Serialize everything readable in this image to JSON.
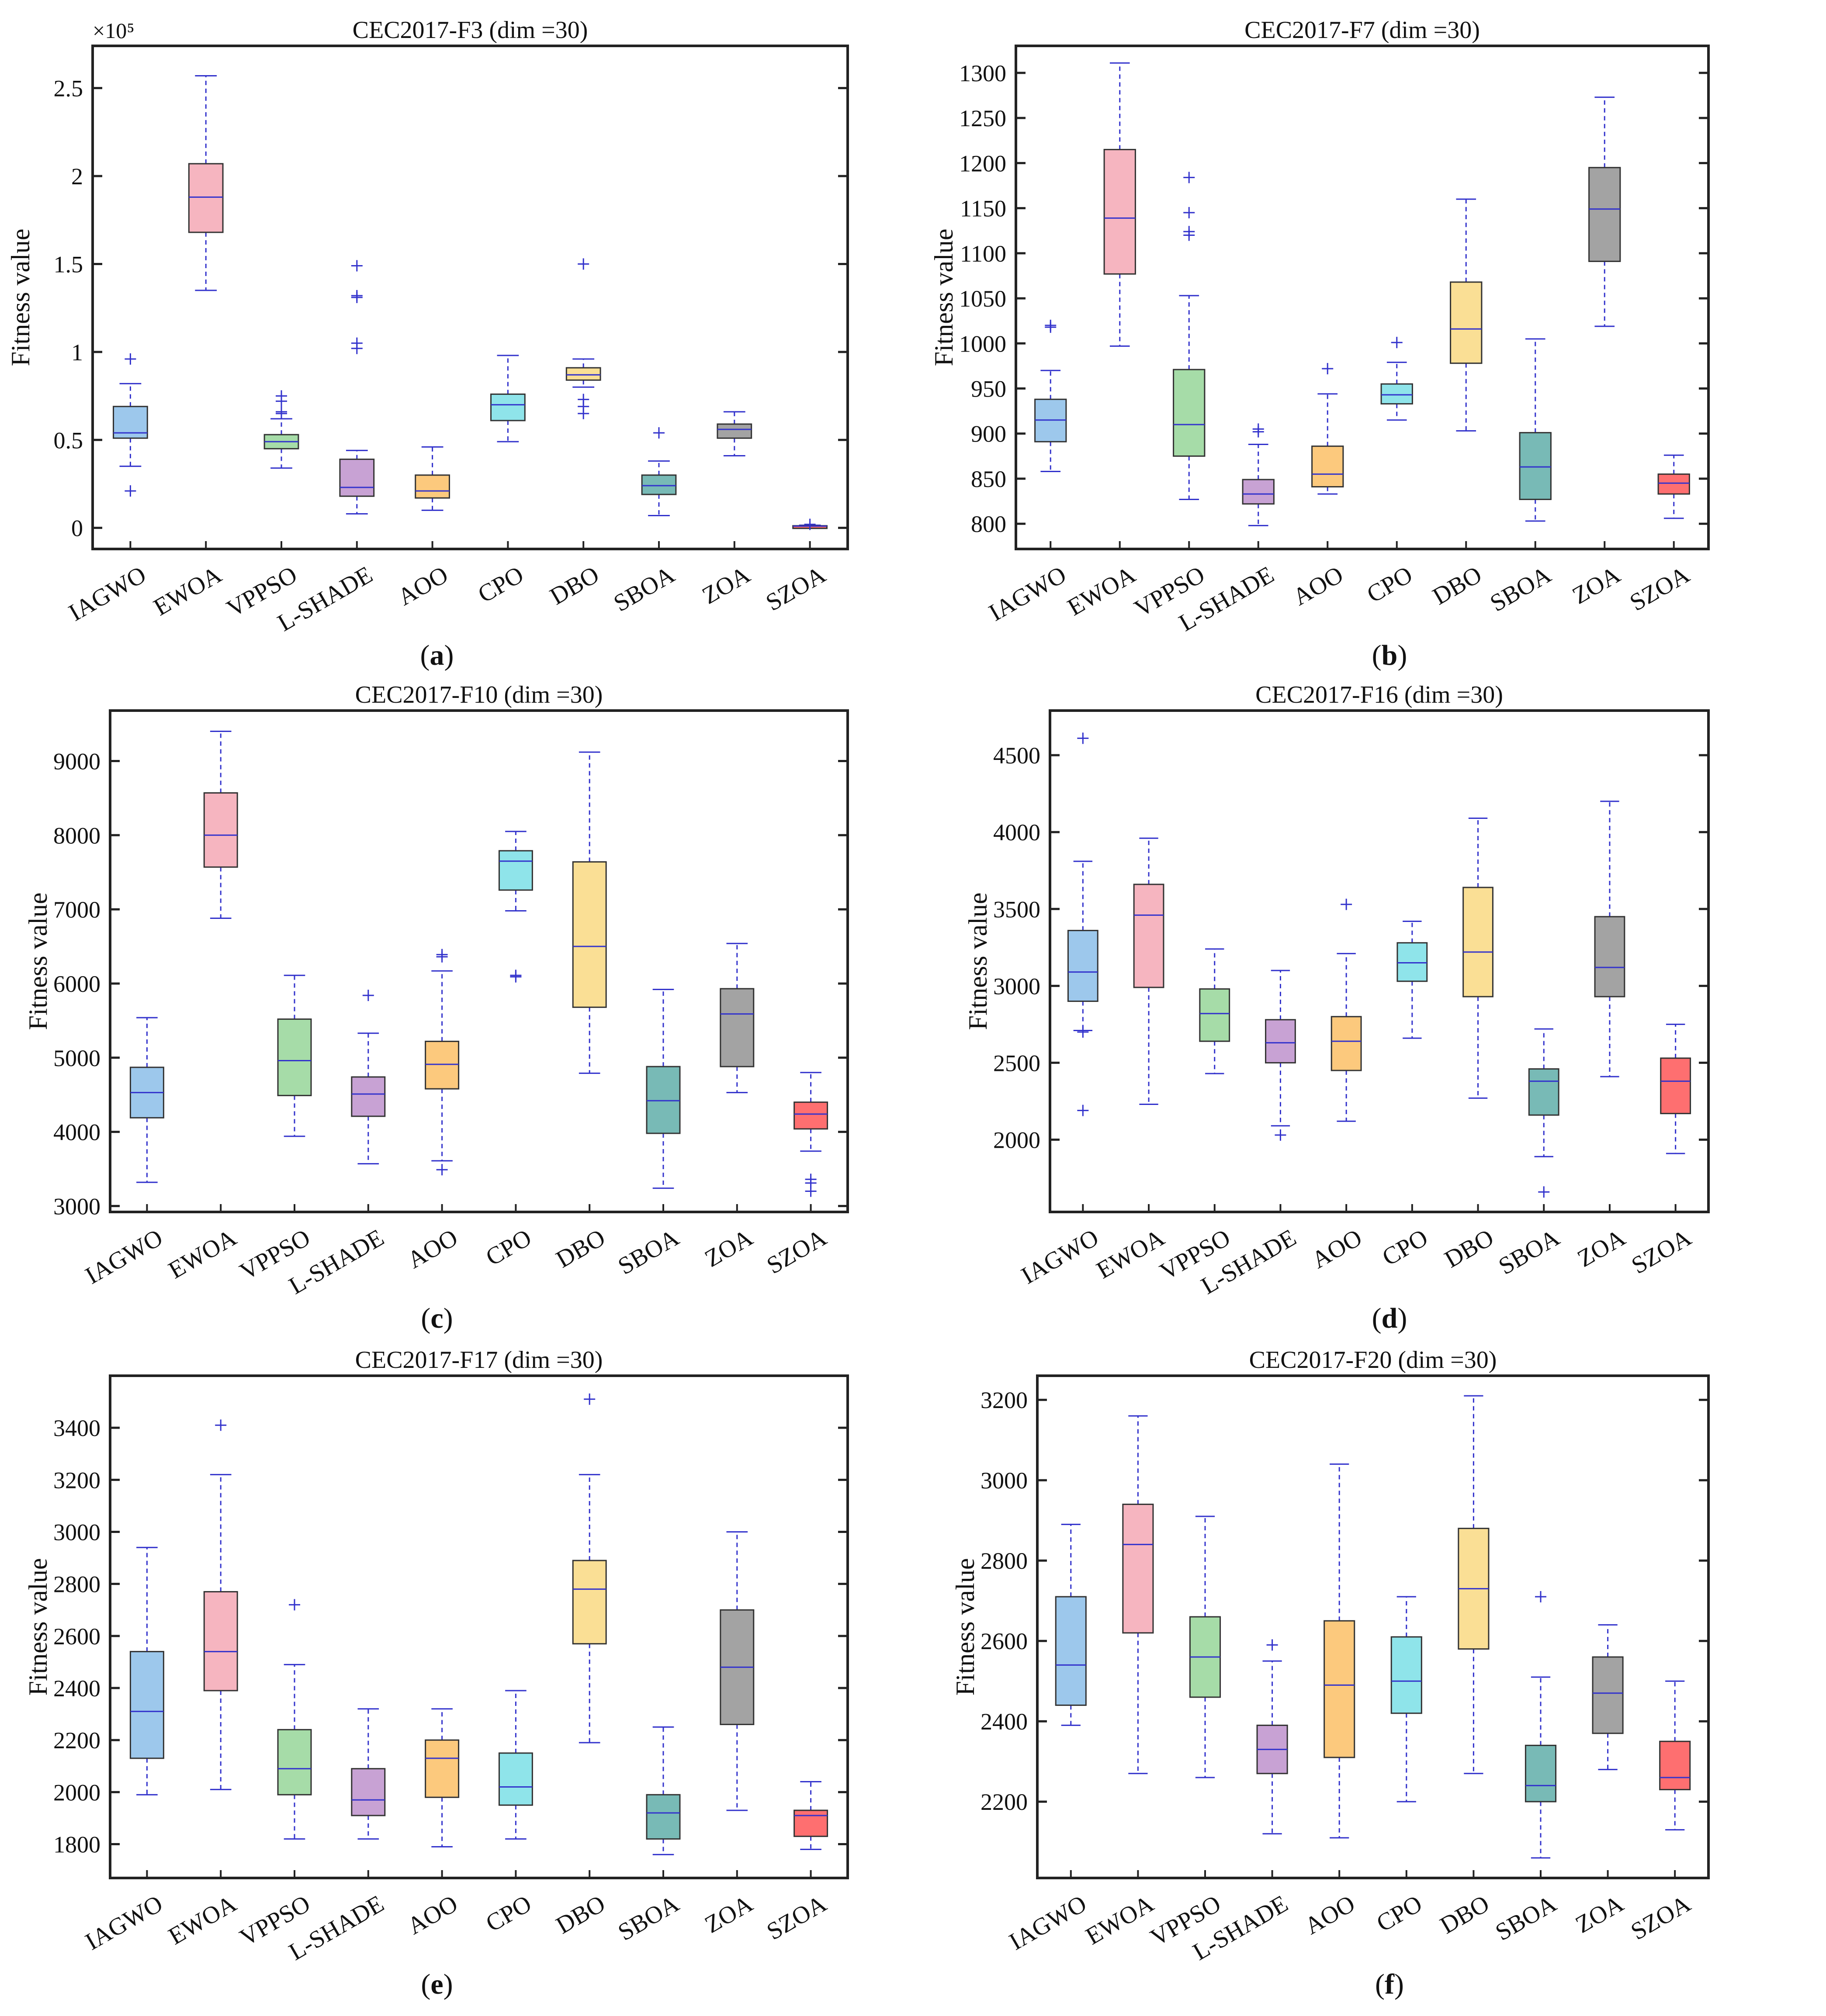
{
  "figure": {
    "categories": [
      "IAGWO",
      "EWOA",
      "VPPSO",
      "L-SHADE",
      "AOO",
      "CPO",
      "DBO",
      "SBOA",
      "ZOA",
      "SZOA"
    ],
    "colors": [
      "#9DC8EC",
      "#F6B5C0",
      "#A6DCA8",
      "#C8A2D4",
      "#FCC97D",
      "#8FE4EA",
      "#FADF95",
      "#78BAB6",
      "#A3A3A3",
      "#FE6F70"
    ],
    "whisker_color": "#3333CC",
    "ylabel": "Fitness value"
  },
  "chart_data": [
    {
      "type": "box",
      "title": "CEC2017-F3 (dim =30)",
      "panel_label": "a",
      "ylabel": "Fitness value",
      "scale_label": "×10⁵",
      "ylim": [
        -0.12,
        2.74
      ],
      "yticks": [
        0,
        0.5,
        1,
        1.5,
        2,
        2.5
      ],
      "ytick_labels": [
        "0",
        "0.5",
        "1",
        "1.5",
        "2",
        "2.5"
      ],
      "boxes": [
        {
          "name": "IAGWO",
          "whislo": 0.35,
          "q1": 0.51,
          "med": 0.54,
          "q3": 0.69,
          "whishi": 0.82,
          "fliers": [
            0.96,
            0.21
          ]
        },
        {
          "name": "EWOA",
          "whislo": 1.35,
          "q1": 1.68,
          "med": 1.88,
          "q3": 2.07,
          "whishi": 2.57,
          "fliers": []
        },
        {
          "name": "VPPSO",
          "whislo": 0.34,
          "q1": 0.45,
          "med": 0.49,
          "q3": 0.53,
          "whishi": 0.62,
          "fliers": [
            0.75,
            0.72,
            0.66,
            0.65
          ]
        },
        {
          "name": "L-SHADE",
          "whislo": 0.08,
          "q1": 0.18,
          "med": 0.23,
          "q3": 0.39,
          "whishi": 0.44,
          "fliers": [
            1.49,
            1.32,
            1.31,
            1.05,
            1.02
          ]
        },
        {
          "name": "AOO",
          "whislo": 0.1,
          "q1": 0.17,
          "med": 0.21,
          "q3": 0.3,
          "whishi": 0.46,
          "fliers": []
        },
        {
          "name": "CPO",
          "whislo": 0.49,
          "q1": 0.61,
          "med": 0.7,
          "q3": 0.76,
          "whishi": 0.98,
          "fliers": []
        },
        {
          "name": "DBO",
          "whislo": 0.8,
          "q1": 0.84,
          "med": 0.87,
          "q3": 0.91,
          "whishi": 0.96,
          "fliers": [
            1.5,
            0.73,
            0.69,
            0.65
          ]
        },
        {
          "name": "SBOA",
          "whislo": 0.07,
          "q1": 0.19,
          "med": 0.24,
          "q3": 0.3,
          "whishi": 0.38,
          "fliers": [
            0.54
          ]
        },
        {
          "name": "ZOA",
          "whislo": 0.41,
          "q1": 0.51,
          "med": 0.56,
          "q3": 0.59,
          "whishi": 0.66,
          "fliers": []
        },
        {
          "name": "SZOA",
          "whislo": 0.005,
          "q1": 0.007,
          "med": 0.01,
          "q3": 0.012,
          "whishi": 0.015,
          "fliers": [
            0.02
          ]
        }
      ]
    },
    {
      "type": "box",
      "title": "CEC2017-F7 (dim =30)",
      "panel_label": "b",
      "ylabel": "Fitness value",
      "ylim": [
        772,
        1330
      ],
      "yticks": [
        800,
        850,
        900,
        950,
        1000,
        1050,
        1100,
        1150,
        1200,
        1250,
        1300
      ],
      "ytick_labels": [
        "800",
        "850",
        "900",
        "950",
        "1000",
        "1050",
        "1100",
        "1150",
        "1200",
        "1250",
        "1300"
      ],
      "boxes": [
        {
          "name": "IAGWO",
          "whislo": 858,
          "q1": 891,
          "med": 915,
          "q3": 938,
          "whishi": 970,
          "fliers": [
            1020,
            1018
          ]
        },
        {
          "name": "EWOA",
          "whislo": 997,
          "q1": 1077,
          "med": 1139,
          "q3": 1215,
          "whishi": 1311,
          "fliers": []
        },
        {
          "name": "VPPSO",
          "whislo": 827,
          "q1": 875,
          "med": 910,
          "q3": 971,
          "whishi": 1053,
          "fliers": [
            1184,
            1145,
            1124,
            1120
          ]
        },
        {
          "name": "L-SHADE",
          "whislo": 798,
          "q1": 822,
          "med": 833,
          "q3": 849,
          "whishi": 888,
          "fliers": [
            905,
            902
          ]
        },
        {
          "name": "AOO",
          "whislo": 833,
          "q1": 841,
          "med": 855,
          "q3": 886,
          "whishi": 944,
          "fliers": [
            972
          ]
        },
        {
          "name": "CPO",
          "whislo": 915,
          "q1": 933,
          "med": 943,
          "q3": 955,
          "whishi": 979,
          "fliers": [
            1001
          ]
        },
        {
          "name": "DBO",
          "whislo": 903,
          "q1": 978,
          "med": 1016,
          "q3": 1068,
          "whishi": 1160,
          "fliers": []
        },
        {
          "name": "SBOA",
          "whislo": 803,
          "q1": 827,
          "med": 863,
          "q3": 901,
          "whishi": 1005,
          "fliers": []
        },
        {
          "name": "ZOA",
          "whislo": 1019,
          "q1": 1091,
          "med": 1149,
          "q3": 1195,
          "whishi": 1273,
          "fliers": []
        },
        {
          "name": "SZOA",
          "whislo": 806,
          "q1": 833,
          "med": 845,
          "q3": 855,
          "whishi": 876,
          "fliers": []
        }
      ]
    },
    {
      "type": "box",
      "title": "CEC2017-F10 (dim =30)",
      "panel_label": "c",
      "ylabel": "Fitness value",
      "ylim": [
        2920,
        9680
      ],
      "yticks": [
        3000,
        4000,
        5000,
        6000,
        7000,
        8000,
        9000
      ],
      "ytick_labels": [
        "3000",
        "4000",
        "5000",
        "6000",
        "7000",
        "8000",
        "9000"
      ],
      "boxes": [
        {
          "name": "IAGWO",
          "whislo": 3320,
          "q1": 4190,
          "med": 4530,
          "q3": 4870,
          "whishi": 5540,
          "fliers": []
        },
        {
          "name": "EWOA",
          "whislo": 6880,
          "q1": 7570,
          "med": 8000,
          "q3": 8570,
          "whishi": 9400,
          "fliers": []
        },
        {
          "name": "VPPSO",
          "whislo": 3940,
          "q1": 4490,
          "med": 4960,
          "q3": 5520,
          "whishi": 6110,
          "fliers": []
        },
        {
          "name": "L-SHADE",
          "whislo": 3570,
          "q1": 4210,
          "med": 4510,
          "q3": 4740,
          "whishi": 5330,
          "fliers": [
            5840
          ]
        },
        {
          "name": "AOO",
          "whislo": 3610,
          "q1": 4580,
          "med": 4910,
          "q3": 5220,
          "whishi": 6170,
          "fliers": [
            6390,
            6360,
            3490
          ]
        },
        {
          "name": "CPO",
          "whislo": 6980,
          "q1": 7260,
          "med": 7650,
          "q3": 7790,
          "whishi": 8050,
          "fliers": [
            6110,
            6090
          ]
        },
        {
          "name": "DBO",
          "whislo": 4790,
          "q1": 5680,
          "med": 6500,
          "q3": 7640,
          "whishi": 9120,
          "fliers": []
        },
        {
          "name": "SBOA",
          "whislo": 3240,
          "q1": 3980,
          "med": 4420,
          "q3": 4880,
          "whishi": 5920,
          "fliers": []
        },
        {
          "name": "ZOA",
          "whislo": 4530,
          "q1": 4880,
          "med": 5590,
          "q3": 5930,
          "whishi": 6540,
          "fliers": []
        },
        {
          "name": "SZOA",
          "whislo": 3740,
          "q1": 4040,
          "med": 4240,
          "q3": 4400,
          "whishi": 4800,
          "fliers": [
            3360,
            3310,
            3200
          ]
        }
      ]
    },
    {
      "type": "box",
      "title": "CEC2017-F16 (dim =30)",
      "panel_label": "d",
      "ylabel": "Fitness value",
      "ylim": [
        1530,
        4790
      ],
      "yticks": [
        2000,
        2500,
        3000,
        3500,
        4000,
        4500
      ],
      "ytick_labels": [
        "2000",
        "2500",
        "3000",
        "3500",
        "4000",
        "4500"
      ],
      "boxes": [
        {
          "name": "IAGWO",
          "whislo": 2710,
          "q1": 2900,
          "med": 3090,
          "q3": 3360,
          "whishi": 3810,
          "fliers": [
            4610,
            2700,
            2190
          ]
        },
        {
          "name": "EWOA",
          "whislo": 2230,
          "q1": 2990,
          "med": 3460,
          "q3": 3660,
          "whishi": 3960,
          "fliers": []
        },
        {
          "name": "VPPSO",
          "whislo": 2430,
          "q1": 2640,
          "med": 2820,
          "q3": 2980,
          "whishi": 3240,
          "fliers": []
        },
        {
          "name": "L-SHADE",
          "whislo": 2090,
          "q1": 2500,
          "med": 2630,
          "q3": 2780,
          "whishi": 3100,
          "fliers": [
            2030
          ]
        },
        {
          "name": "AOO",
          "whislo": 2120,
          "q1": 2450,
          "med": 2640,
          "q3": 2800,
          "whishi": 3210,
          "fliers": [
            3530
          ]
        },
        {
          "name": "CPO",
          "whislo": 2660,
          "q1": 3030,
          "med": 3150,
          "q3": 3280,
          "whishi": 3420,
          "fliers": []
        },
        {
          "name": "DBO",
          "whislo": 2270,
          "q1": 2930,
          "med": 3220,
          "q3": 3640,
          "whishi": 4090,
          "fliers": []
        },
        {
          "name": "SBOA",
          "whislo": 1890,
          "q1": 2160,
          "med": 2380,
          "q3": 2460,
          "whishi": 2720,
          "fliers": [
            1660
          ]
        },
        {
          "name": "ZOA",
          "whislo": 2410,
          "q1": 2930,
          "med": 3120,
          "q3": 3450,
          "whishi": 4200,
          "fliers": []
        },
        {
          "name": "SZOA",
          "whislo": 1910,
          "q1": 2170,
          "med": 2380,
          "q3": 2530,
          "whishi": 2750,
          "fliers": []
        }
      ]
    },
    {
      "type": "box",
      "title": "CEC2017-F17 (dim =30)",
      "panel_label": "e",
      "ylabel": "Fitness value",
      "ylim": [
        1670,
        3600
      ],
      "yticks": [
        1800,
        2000,
        2200,
        2400,
        2600,
        2800,
        3000,
        3200,
        3400
      ],
      "ytick_labels": [
        "1800",
        "2000",
        "2200",
        "2400",
        "2600",
        "2800",
        "3000",
        "3200",
        "3400"
      ],
      "boxes": [
        {
          "name": "IAGWO",
          "whislo": 1990,
          "q1": 2130,
          "med": 2310,
          "q3": 2540,
          "whishi": 2940,
          "fliers": []
        },
        {
          "name": "EWOA",
          "whislo": 2010,
          "q1": 2390,
          "med": 2540,
          "q3": 2770,
          "whishi": 3220,
          "fliers": [
            3410
          ]
        },
        {
          "name": "VPPSO",
          "whislo": 1820,
          "q1": 1990,
          "med": 2090,
          "q3": 2240,
          "whishi": 2490,
          "fliers": [
            2720
          ]
        },
        {
          "name": "L-SHADE",
          "whislo": 1820,
          "q1": 1910,
          "med": 1970,
          "q3": 2090,
          "whishi": 2320,
          "fliers": []
        },
        {
          "name": "AOO",
          "whislo": 1790,
          "q1": 1980,
          "med": 2130,
          "q3": 2200,
          "whishi": 2320,
          "fliers": []
        },
        {
          "name": "CPO",
          "whislo": 1820,
          "q1": 1950,
          "med": 2020,
          "q3": 2150,
          "whishi": 2390,
          "fliers": []
        },
        {
          "name": "DBO",
          "whislo": 2190,
          "q1": 2570,
          "med": 2780,
          "q3": 2890,
          "whishi": 3220,
          "fliers": [
            3510
          ]
        },
        {
          "name": "SBOA",
          "whislo": 1760,
          "q1": 1820,
          "med": 1920,
          "q3": 1990,
          "whishi": 2250,
          "fliers": []
        },
        {
          "name": "ZOA",
          "whislo": 1930,
          "q1": 2260,
          "med": 2480,
          "q3": 2700,
          "whishi": 3000,
          "fliers": []
        },
        {
          "name": "SZOA",
          "whislo": 1780,
          "q1": 1830,
          "med": 1910,
          "q3": 1930,
          "whishi": 2040,
          "fliers": []
        }
      ]
    },
    {
      "type": "box",
      "title": "CEC2017-F20 (dim =30)",
      "panel_label": "f",
      "ylabel": "Fitness value",
      "ylim": [
        2010,
        3260
      ],
      "yticks": [
        2200,
        2400,
        2600,
        2800,
        3000,
        3200
      ],
      "ytick_labels": [
        "2200",
        "2400",
        "2600",
        "2800",
        "3000",
        "3200"
      ],
      "boxes": [
        {
          "name": "IAGWO",
          "whislo": 2390,
          "q1": 2440,
          "med": 2540,
          "q3": 2710,
          "whishi": 2890,
          "fliers": []
        },
        {
          "name": "EWOA",
          "whislo": 2270,
          "q1": 2620,
          "med": 2840,
          "q3": 2940,
          "whishi": 3160,
          "fliers": []
        },
        {
          "name": "VPPSO",
          "whislo": 2260,
          "q1": 2460,
          "med": 2560,
          "q3": 2660,
          "whishi": 2910,
          "fliers": []
        },
        {
          "name": "L-SHADE",
          "whislo": 2120,
          "q1": 2270,
          "med": 2330,
          "q3": 2390,
          "whishi": 2550,
          "fliers": [
            2590
          ]
        },
        {
          "name": "AOO",
          "whislo": 2110,
          "q1": 2310,
          "med": 2490,
          "q3": 2650,
          "whishi": 3040,
          "fliers": []
        },
        {
          "name": "CPO",
          "whislo": 2200,
          "q1": 2420,
          "med": 2500,
          "q3": 2610,
          "whishi": 2710,
          "fliers": []
        },
        {
          "name": "DBO",
          "whislo": 2270,
          "q1": 2580,
          "med": 2730,
          "q3": 2880,
          "whishi": 3210,
          "fliers": []
        },
        {
          "name": "SBOA",
          "whislo": 2060,
          "q1": 2200,
          "med": 2240,
          "q3": 2340,
          "whishi": 2510,
          "fliers": [
            2710
          ]
        },
        {
          "name": "ZOA",
          "whislo": 2280,
          "q1": 2370,
          "med": 2470,
          "q3": 2560,
          "whishi": 2640,
          "fliers": []
        },
        {
          "name": "SZOA",
          "whislo": 2130,
          "q1": 2230,
          "med": 2260,
          "q3": 2350,
          "whishi": 2500,
          "fliers": []
        }
      ]
    }
  ]
}
